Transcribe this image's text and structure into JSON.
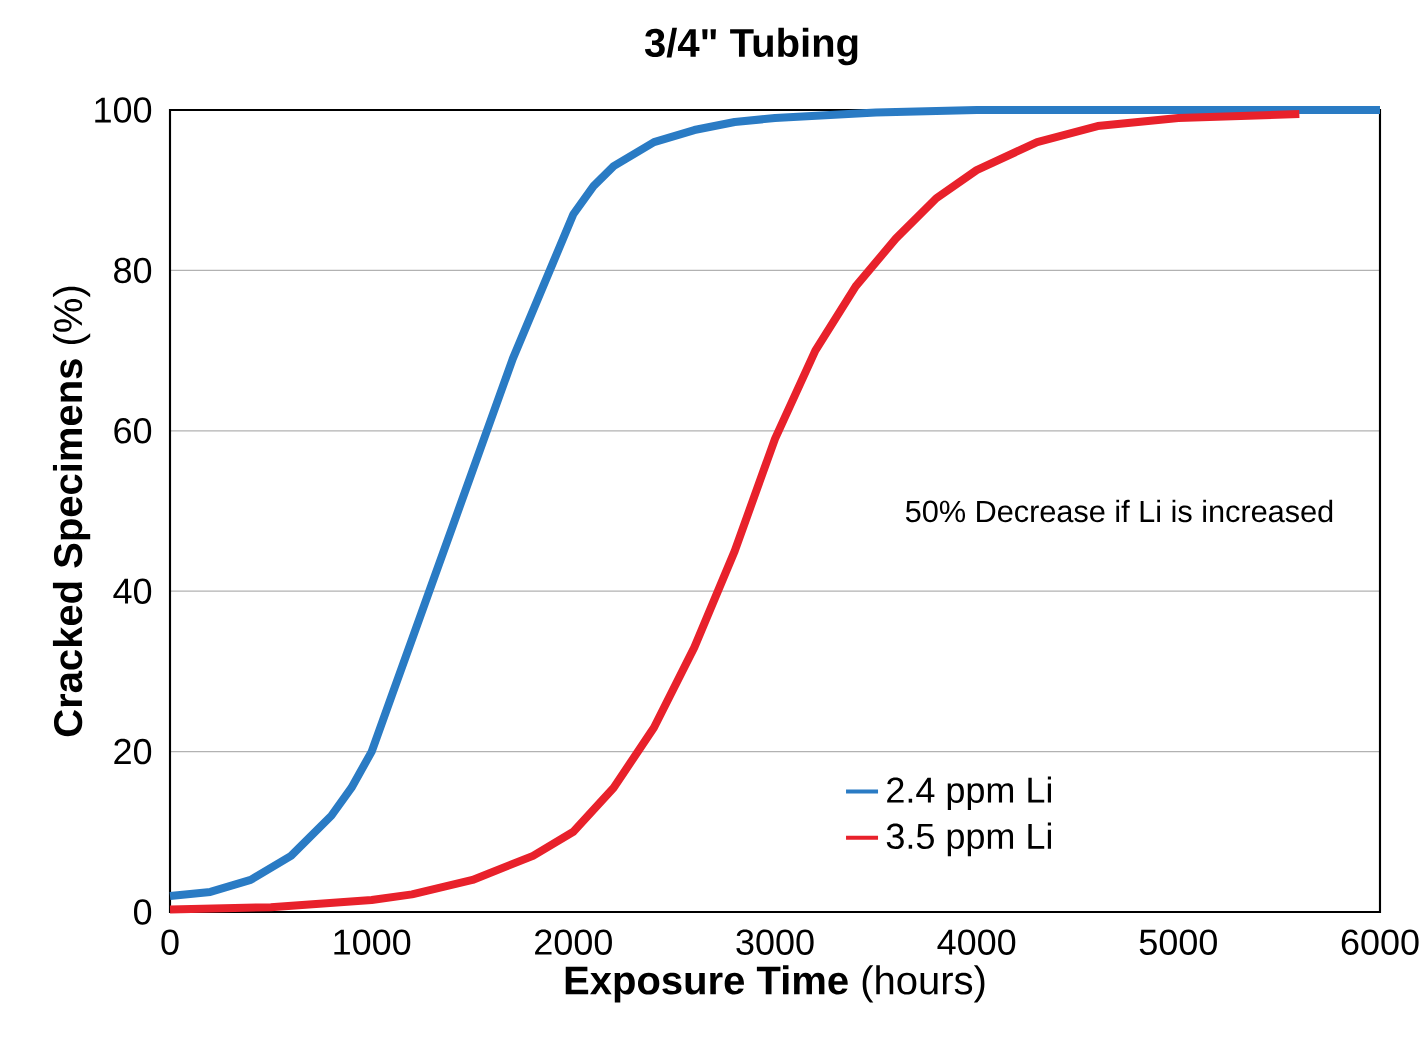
{
  "chart_data": {
    "type": "line",
    "title": "3/4\" Tubing",
    "xlabel": "**Exposure Time** (hours)",
    "ylabel": "**Cracked Specimens** (%)",
    "annotations": [
      "50% Decrease if Li is increased"
    ],
    "xlim": [
      0,
      6000
    ],
    "xticks": [
      0,
      1000,
      2000,
      3000,
      4000,
      5000,
      6000
    ],
    "ylim": [
      0,
      100
    ],
    "yticks": [
      0,
      20,
      40,
      60,
      80,
      100
    ],
    "grid": "y",
    "legend": "bottom right",
    "line_style": "solid",
    "series": [
      {
        "name": "2.4 ppm Li",
        "color": "#2a7bc4",
        "x": [
          0,
          200,
          400,
          600,
          800,
          900,
          1000,
          1100,
          1200,
          1300,
          1400,
          1500,
          1600,
          1700,
          1800,
          1900,
          2000,
          2100,
          2200,
          2400,
          2600,
          2800,
          3000,
          3500,
          4000,
          5000,
          6000
        ],
        "values": [
          2,
          2.5,
          4,
          7,
          12,
          15.5,
          20,
          27,
          34,
          41,
          48,
          55,
          62,
          69,
          75,
          81,
          87,
          90.5,
          93,
          96,
          97.5,
          98.5,
          99,
          99.7,
          100,
          100,
          100
        ]
      },
      {
        "name": "3.5 ppm Li",
        "color": "#e8212b",
        "x": [
          0,
          500,
          1000,
          1200,
          1500,
          1800,
          2000,
          2200,
          2400,
          2600,
          2800,
          3000,
          3200,
          3400,
          3600,
          3800,
          4000,
          4300,
          4600,
          5000,
          5600
        ],
        "values": [
          0.3,
          0.6,
          1.5,
          2.2,
          4,
          7,
          10,
          15.5,
          23,
          33,
          45,
          59,
          70,
          78,
          84,
          89,
          92.5,
          96,
          98,
          99,
          99.5
        ]
      }
    ]
  }
}
